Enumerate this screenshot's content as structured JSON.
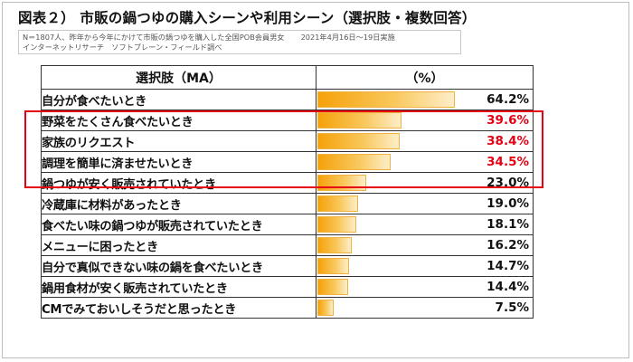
{
  "title": "図表２） 市販の鍋つゆの購入シーンや利用シーン（選択肢・複数回答）",
  "notes": {
    "line1": "N＝1807人、昨年から今年にかけて市販の鍋つゆを購入した全国POB会員男女",
    "date": "2021年4月16日～19日実施",
    "line2": "インターネットリサーチ　ソフトブレーン・フィールド調べ"
  },
  "table": {
    "col_label_header": "選択肢（MA）",
    "col_value_header": "（%）"
  },
  "colors": {
    "highlight": "#e60012",
    "bar": "#f5a10a"
  },
  "chart_data": {
    "type": "bar",
    "orientation": "horizontal",
    "unit": "%",
    "xlim": [
      0,
      100
    ],
    "categories": [
      "自分が食べたいとき",
      "野菜をたくさん食べたいとき",
      "家族のリクエスト",
      "調理を簡単に済ませたいとき",
      "鍋つゆが安く販売されていたとき",
      "冷蔵庫に材料があったとき",
      "食べたい味の鍋つゆが販売されていたとき",
      "メニューに困ったとき",
      "自分で真似できない味の鍋を食べたいとき",
      "鍋用食材が安く販売されていたとき",
      "CMでみておいしそうだと思ったとき"
    ],
    "values": [
      64.2,
      39.6,
      38.4,
      34.5,
      23.0,
      19.0,
      18.1,
      16.2,
      14.7,
      14.4,
      7.5
    ],
    "value_labels": [
      "64.2%",
      "39.6%",
      "38.4%",
      "34.5%",
      "23.0%",
      "19.0%",
      "18.1%",
      "16.2%",
      "14.7%",
      "14.4%",
      "7.5%"
    ],
    "highlighted": [
      1,
      2,
      3
    ]
  }
}
